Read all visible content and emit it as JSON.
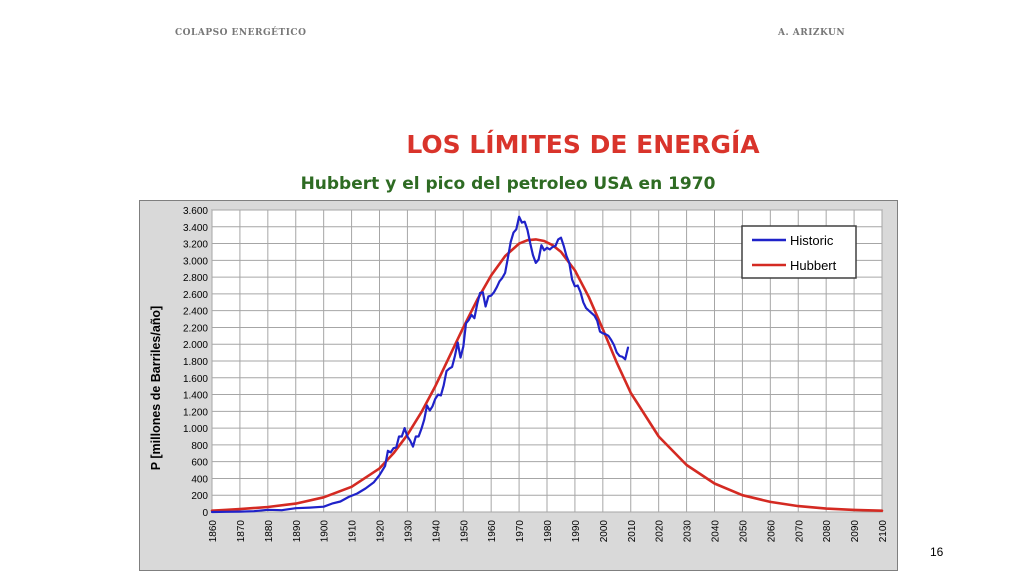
{
  "header": {
    "left": "COLAPSO ENERGÉTICO",
    "right": "A. ARIZKUN"
  },
  "slide": {
    "title": "LOS LÍMITES DE ENERGÍA",
    "subtitle": "Hubbert y el pico del petroleo USA en 1970",
    "page_number": "16"
  },
  "colors": {
    "historic": "#1f22c9",
    "hubbert": "#d42a22",
    "grid": "#a6a6a6",
    "plot_border": "#7f7f7f",
    "chart_background": "#d9d9d9"
  },
  "chart_data": {
    "type": "line",
    "title": "",
    "xlabel": "",
    "ylabel": "P  [millones de Barriles/año]",
    "xlim": [
      1860,
      2100
    ],
    "ylim": [
      0,
      3600
    ],
    "x_ticks": [
      1860,
      1870,
      1880,
      1890,
      1900,
      1910,
      1920,
      1930,
      1940,
      1950,
      1960,
      1970,
      1980,
      1990,
      2000,
      2010,
      2020,
      2030,
      2040,
      2050,
      2060,
      2070,
      2080,
      2090,
      2100
    ],
    "y_ticks": [
      0,
      200,
      400,
      600,
      800,
      1000,
      1200,
      1400,
      1600,
      1800,
      2000,
      2200,
      2400,
      2600,
      2800,
      3000,
      3200,
      3400,
      3600
    ],
    "y_tick_labels": [
      "0",
      "200",
      "400",
      "600",
      "800",
      "1.000",
      "1.200",
      "1.400",
      "1.600",
      "1.800",
      "2.000",
      "2.200",
      "2.400",
      "2.600",
      "2.800",
      "3.000",
      "3.200",
      "3.400",
      "3.600"
    ],
    "grid": true,
    "legend": "top-right",
    "series": [
      {
        "name": "Historic",
        "x": [
          1860,
          1865,
          1870,
          1875,
          1880,
          1885,
          1890,
          1895,
          1900,
          1903,
          1906,
          1909,
          1912,
          1915,
          1918,
          1920,
          1922,
          1923,
          1924,
          1925,
          1926,
          1927,
          1928,
          1929,
          1930,
          1931,
          1932,
          1933,
          1934,
          1935,
          1936,
          1937,
          1938,
          1939,
          1940,
          1941,
          1942,
          1943,
          1944,
          1945,
          1946,
          1947,
          1948,
          1949,
          1950,
          1951,
          1952,
          1953,
          1954,
          1955,
          1956,
          1957,
          1958,
          1959,
          1960,
          1961,
          1962,
          1963,
          1964,
          1965,
          1966,
          1967,
          1968,
          1969,
          1970,
          1971,
          1972,
          1973,
          1974,
          1975,
          1976,
          1977,
          1978,
          1979,
          1980,
          1981,
          1982,
          1983,
          1984,
          1985,
          1986,
          1987,
          1988,
          1989,
          1990,
          1991,
          1992,
          1993,
          1994,
          1995,
          1996,
          1997,
          1998,
          1999,
          2000,
          2001,
          2002,
          2003,
          2004,
          2005,
          2006,
          2007,
          2008,
          2009
        ],
        "values": [
          0,
          2,
          5,
          10,
          26,
          22,
          45,
          53,
          63,
          100,
          125,
          180,
          220,
          280,
          355,
          440,
          550,
          730,
          710,
          760,
          770,
          900,
          900,
          1000,
          900,
          850,
          780,
          900,
          900,
          990,
          1100,
          1270,
          1210,
          1260,
          1350,
          1400,
          1390,
          1510,
          1680,
          1710,
          1730,
          1860,
          2020,
          1840,
          1970,
          2250,
          2290,
          2350,
          2310,
          2480,
          2610,
          2620,
          2450,
          2570,
          2580,
          2620,
          2680,
          2750,
          2790,
          2850,
          3030,
          3220,
          3330,
          3370,
          3520,
          3450,
          3460,
          3360,
          3200,
          3060,
          2970,
          3010,
          3180,
          3120,
          3150,
          3130,
          3160,
          3170,
          3250,
          3270,
          3170,
          3050,
          2970,
          2770,
          2690,
          2700,
          2620,
          2500,
          2430,
          2400,
          2370,
          2340,
          2280,
          2150,
          2130,
          2120,
          2100,
          2050,
          1990,
          1900,
          1860,
          1850,
          1820,
          1960
        ]
      },
      {
        "name": "Hubbert",
        "peak_year": 1976,
        "peak_value": 3250,
        "x": [
          1860,
          1870,
          1880,
          1890,
          1900,
          1910,
          1920,
          1925,
          1930,
          1935,
          1940,
          1945,
          1950,
          1955,
          1960,
          1965,
          1970,
          1973,
          1976,
          1979,
          1982,
          1985,
          1990,
          1995,
          2000,
          2005,
          2010,
          2020,
          2030,
          2040,
          2050,
          2060,
          2070,
          2080,
          2090,
          2100
        ],
        "values": [
          15,
          35,
          60,
          100,
          175,
          300,
          520,
          700,
          920,
          1190,
          1500,
          1850,
          2200,
          2530,
          2820,
          3050,
          3200,
          3240,
          3250,
          3230,
          3180,
          3100,
          2880,
          2560,
          2180,
          1780,
          1420,
          900,
          560,
          340,
          200,
          120,
          70,
          40,
          25,
          15
        ]
      }
    ]
  }
}
